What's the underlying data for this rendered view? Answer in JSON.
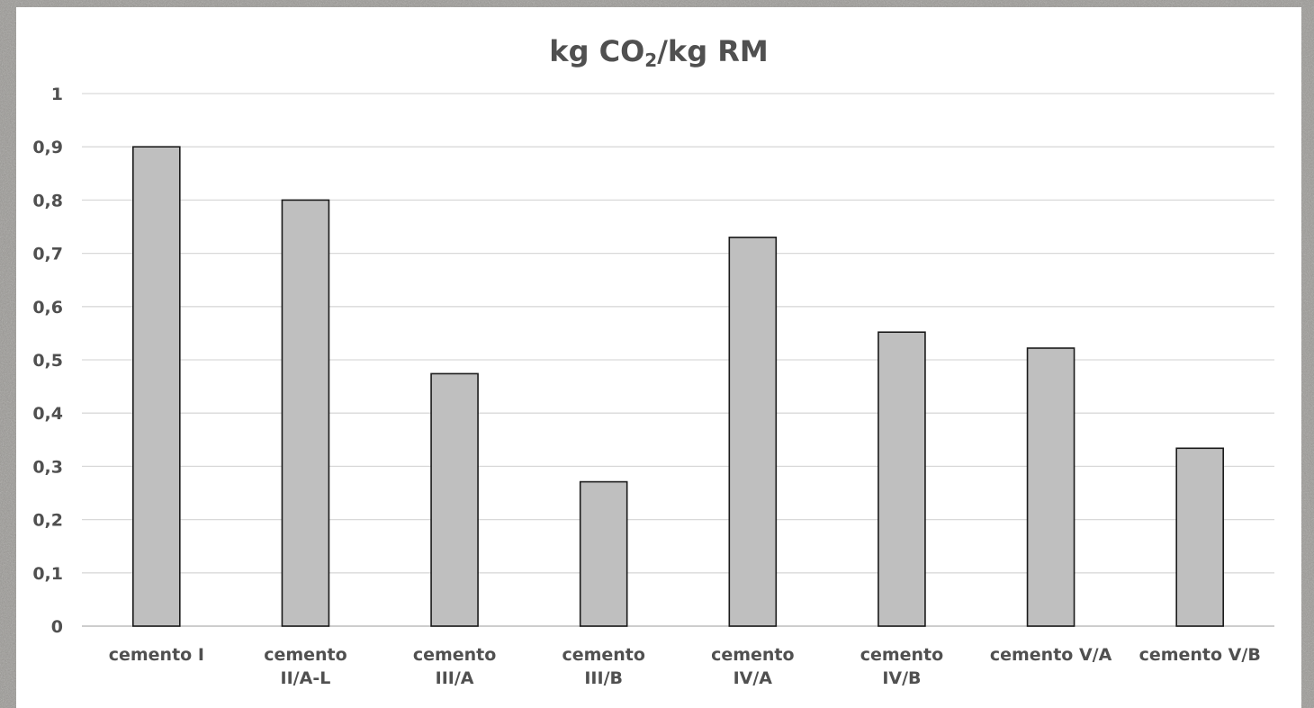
{
  "chart_data": {
    "type": "bar",
    "title": {
      "prefix": "kg CO",
      "subscript": "2",
      "suffix": "/kg RM"
    },
    "categories": [
      "cemento I",
      "cemento II/A-L",
      "cemento III/A",
      "cemento III/B",
      "cemento IV/A",
      "cemento IV/B",
      "cemento V/A",
      "cemento V/B"
    ],
    "category_lines": [
      [
        "cemento I"
      ],
      [
        "cemento",
        "II/A-L"
      ],
      [
        "cemento",
        "III/A"
      ],
      [
        "cemento",
        "III/B"
      ],
      [
        "cemento",
        "IV/A"
      ],
      [
        "cemento",
        "IV/B"
      ],
      [
        "cemento V/A"
      ],
      [
        "cemento V/B"
      ]
    ],
    "values": [
      0.9,
      0.8,
      0.474,
      0.271,
      0.73,
      0.552,
      0.522,
      0.334
    ],
    "ylim": [
      0,
      1
    ],
    "yticks": [
      "0",
      "0,1",
      "0,2",
      "0,3",
      "0,4",
      "0,5",
      "0,6",
      "0,7",
      "0,8",
      "0,9",
      "1"
    ],
    "grid": true,
    "bar_color": "#bfbfbf",
    "bar_edge_color": "#1a1a1a",
    "xlabel": "",
    "ylabel": ""
  }
}
